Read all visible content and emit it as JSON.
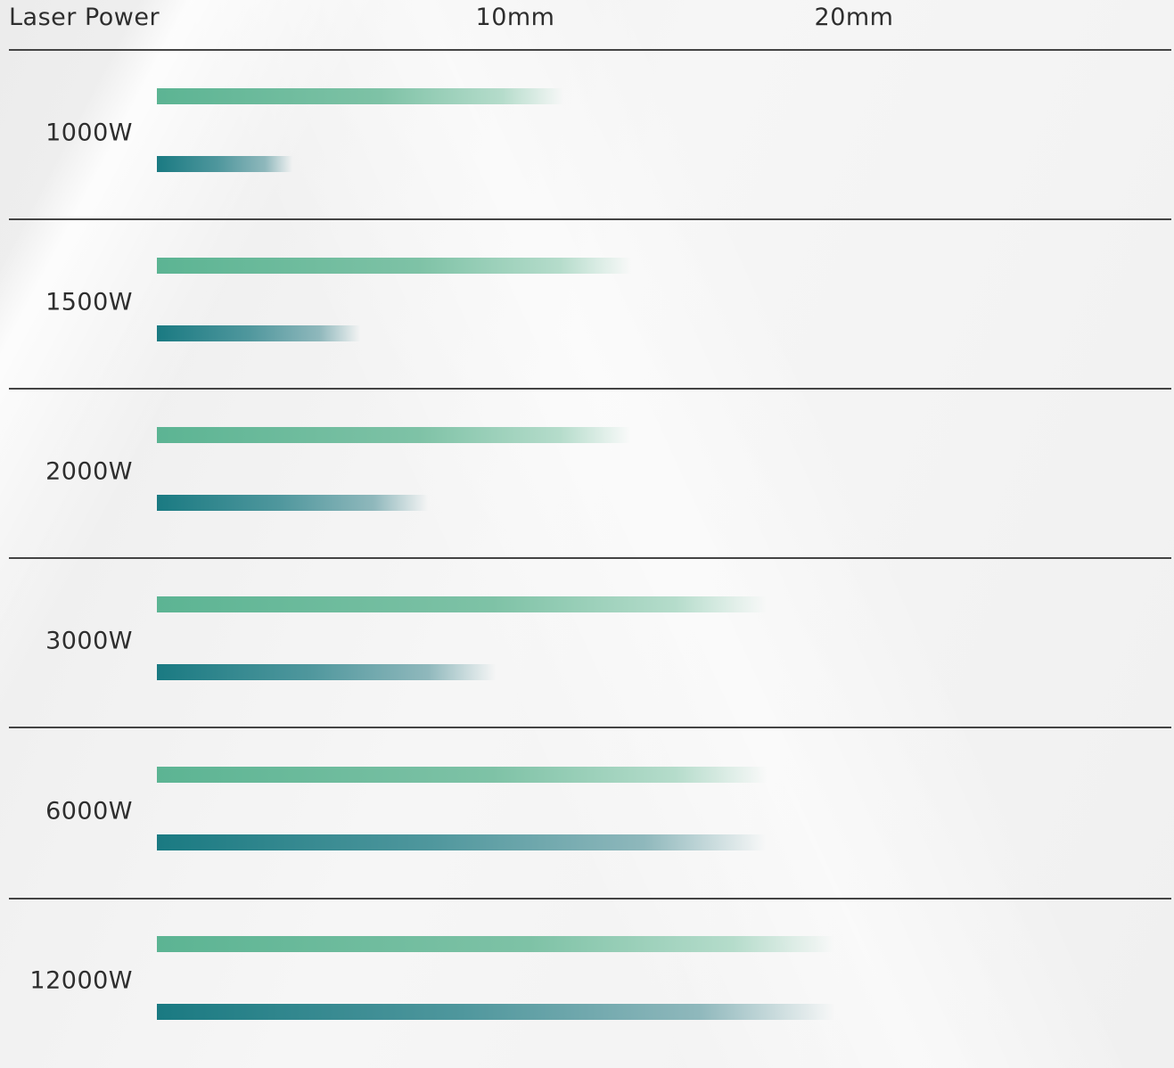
{
  "chart_data": {
    "type": "bar",
    "orientation": "horizontal",
    "header_label": "Laser Power",
    "x_ticks": [
      {
        "label": "10mm",
        "value": 10
      },
      {
        "label": "20mm",
        "value": 20
      }
    ],
    "x_unit": "mm",
    "categories": [
      "1000W",
      "1500W",
      "2000W",
      "3000W",
      "6000W",
      "12000W"
    ],
    "series": [
      {
        "values": [
          12,
          14,
          14,
          18,
          18,
          20
        ],
        "color": "#5cb493"
      },
      {
        "values": [
          4,
          6,
          8,
          10,
          18,
          20
        ],
        "color": "#1a7a82"
      }
    ],
    "xlim": [
      0,
      20
    ]
  }
}
